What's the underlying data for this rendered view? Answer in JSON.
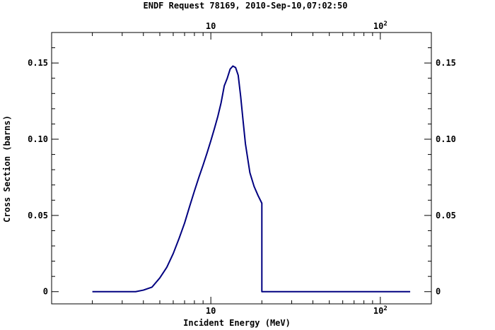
{
  "chart_data": {
    "type": "line",
    "title": "ENDF Request 78169, 2010-Sep-10,07:02:50",
    "xlabel": "Incident Energy (MeV)",
    "ylabel": "Cross Section (barns)",
    "xscale": "log",
    "xlim": [
      1.15,
      200
    ],
    "ylim": [
      -0.008,
      0.17
    ],
    "grid": false,
    "legend": "none",
    "colors": {
      "line": "#000080",
      "frame": "#000000",
      "background": "#ffffff"
    },
    "x_ticks": [
      {
        "value": 10,
        "label": "10"
      },
      {
        "value": 100,
        "label": "10",
        "sup": "2"
      }
    ],
    "y_ticks": [
      {
        "value": 0,
        "label": "0"
      },
      {
        "value": 0.05,
        "label": "0.05"
      },
      {
        "value": 0.1,
        "label": "0.10"
      },
      {
        "value": 0.15,
        "label": "0.15"
      }
    ],
    "series": [
      {
        "x": [
          2.0,
          3.0,
          3.6,
          4.0,
          4.5,
          5.0,
          5.5,
          6.0,
          6.5,
          7.0,
          7.5,
          8.0,
          8.5,
          9.0,
          9.5,
          10.0,
          10.5,
          11.0,
          11.5,
          12.0,
          12.5,
          13.0,
          13.5,
          14.0,
          14.5,
          15.0,
          15.5,
          16.0,
          17.0,
          18.0,
          19.0,
          20.0,
          20.0,
          40.0,
          80.0,
          150.0
        ],
        "y": [
          0.0,
          0.0,
          0.0,
          0.001,
          0.003,
          0.009,
          0.016,
          0.025,
          0.035,
          0.045,
          0.056,
          0.066,
          0.075,
          0.083,
          0.091,
          0.099,
          0.107,
          0.115,
          0.124,
          0.135,
          0.14,
          0.146,
          0.148,
          0.147,
          0.142,
          0.128,
          0.112,
          0.097,
          0.078,
          0.069,
          0.063,
          0.058,
          0.0,
          0.0,
          0.0,
          0.0
        ]
      }
    ]
  }
}
